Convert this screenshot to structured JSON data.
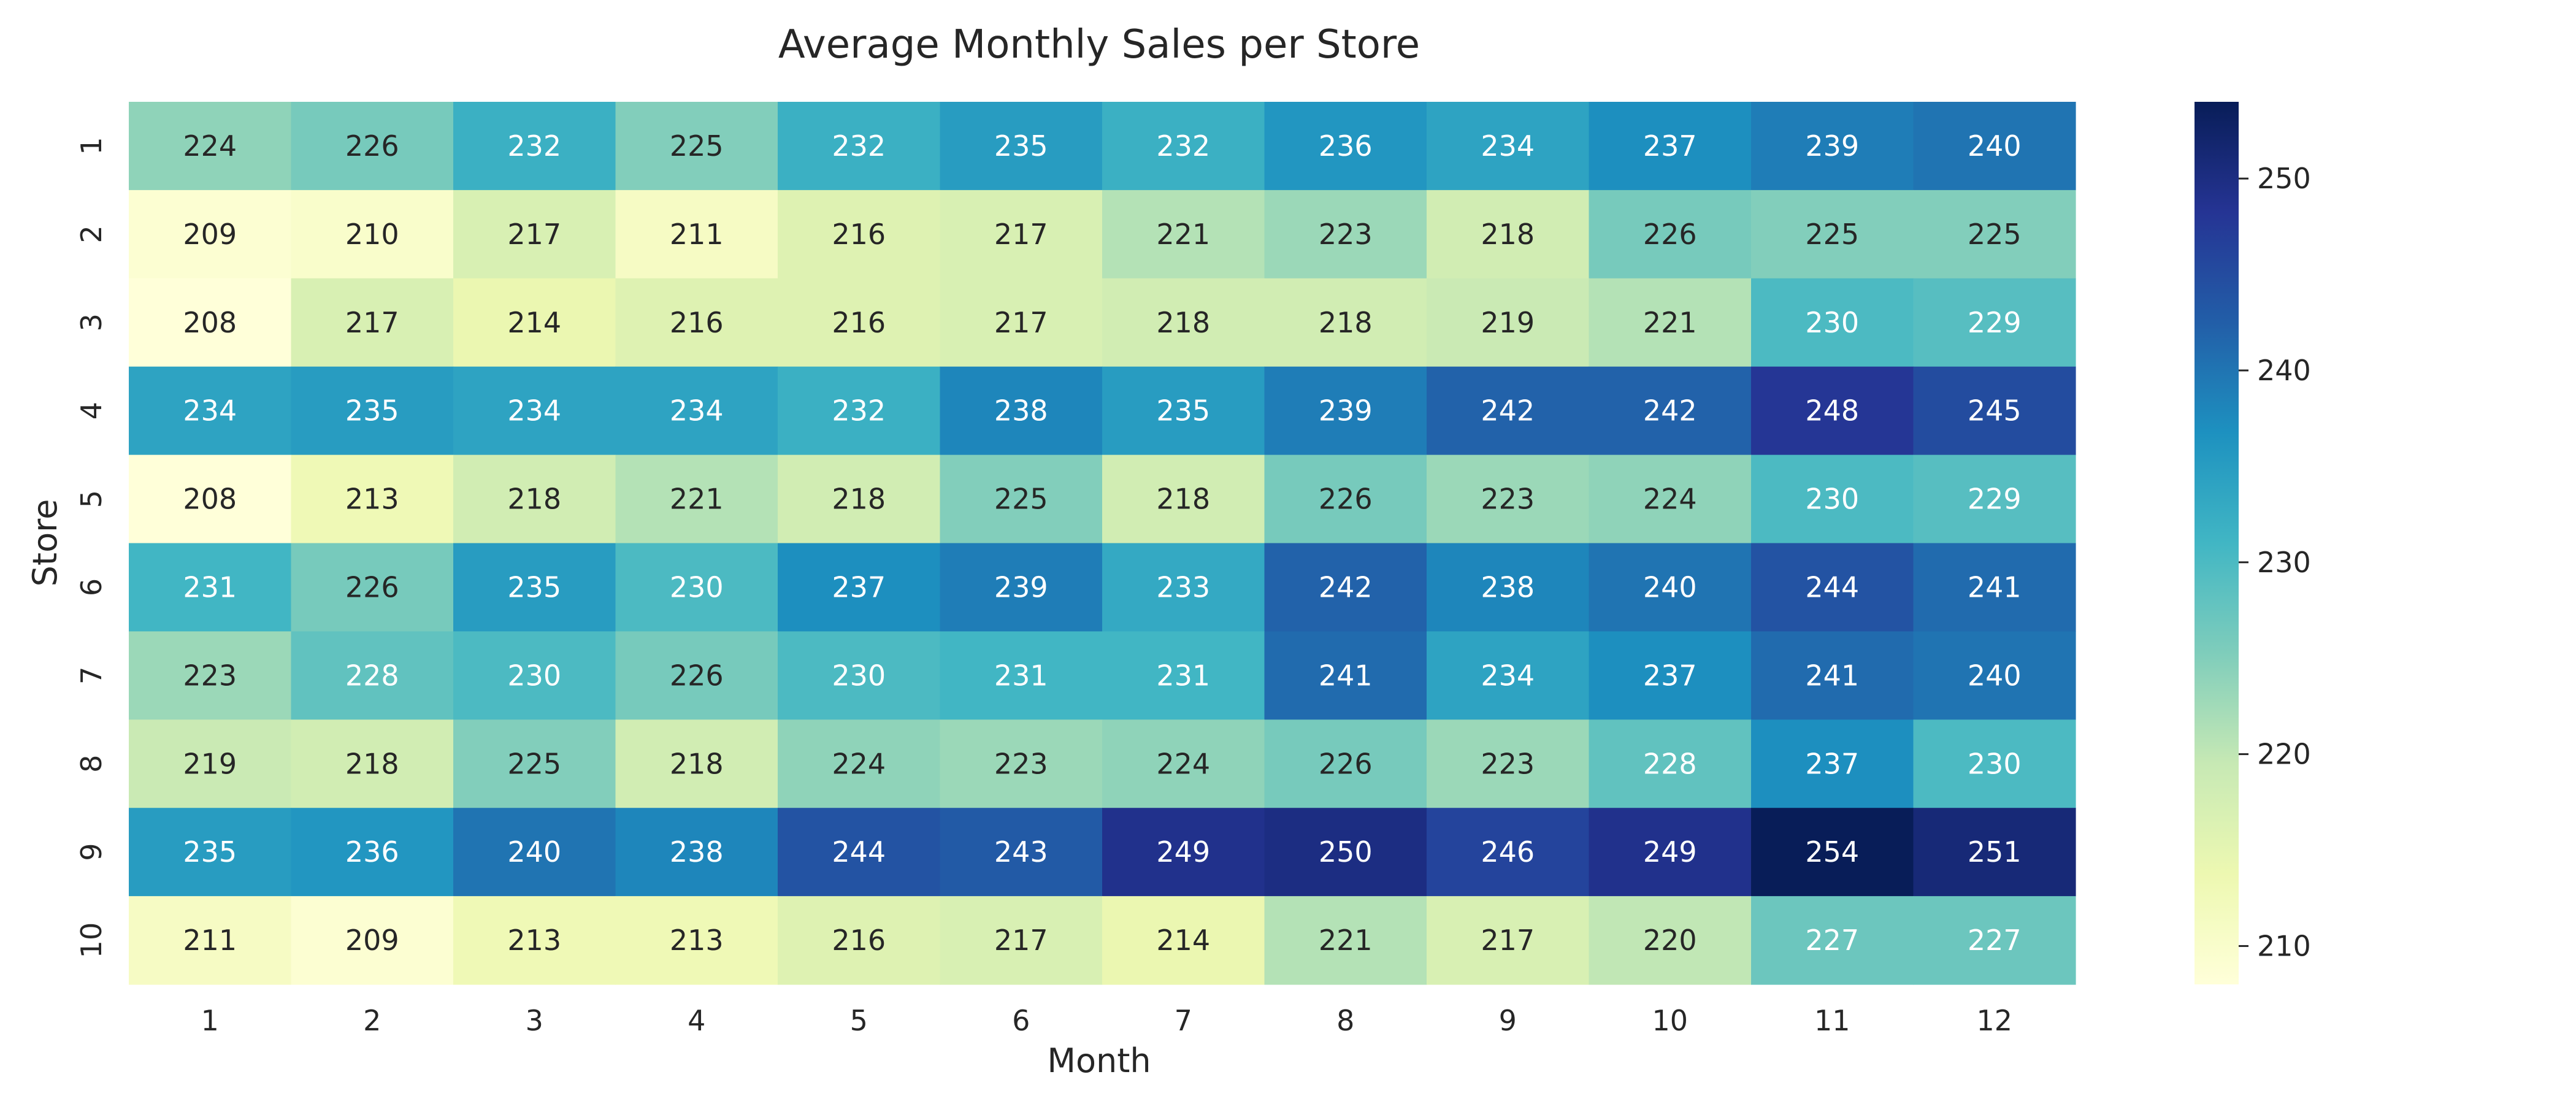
{
  "chart_data": {
    "type": "heatmap",
    "title": "Average Monthly Sales per Store",
    "xlabel": "Month",
    "ylabel": "Store",
    "x_categories": [
      "1",
      "2",
      "3",
      "4",
      "5",
      "6",
      "7",
      "8",
      "9",
      "10",
      "11",
      "12"
    ],
    "y_categories": [
      "1",
      "2",
      "3",
      "4",
      "5",
      "6",
      "7",
      "8",
      "9",
      "10"
    ],
    "values": [
      [
        224,
        226,
        232,
        225,
        232,
        235,
        232,
        236,
        234,
        237,
        239,
        240
      ],
      [
        209,
        210,
        217,
        211,
        216,
        217,
        221,
        223,
        218,
        226,
        225,
        225
      ],
      [
        208,
        217,
        214,
        216,
        216,
        217,
        218,
        218,
        219,
        221,
        230,
        229
      ],
      [
        234,
        235,
        234,
        234,
        232,
        238,
        235,
        239,
        242,
        242,
        248,
        245
      ],
      [
        208,
        213,
        218,
        221,
        218,
        225,
        218,
        226,
        223,
        224,
        230,
        229
      ],
      [
        231,
        226,
        235,
        230,
        237,
        239,
        233,
        242,
        238,
        240,
        244,
        241
      ],
      [
        223,
        228,
        230,
        226,
        230,
        231,
        231,
        241,
        234,
        237,
        241,
        240
      ],
      [
        219,
        218,
        225,
        218,
        224,
        223,
        224,
        226,
        223,
        228,
        237,
        230
      ],
      [
        235,
        236,
        240,
        238,
        244,
        243,
        249,
        250,
        246,
        249,
        254,
        251
      ],
      [
        211,
        209,
        213,
        213,
        216,
        217,
        214,
        221,
        217,
        220,
        227,
        227
      ]
    ],
    "colormap": "YlGnBu",
    "value_range": [
      208,
      254
    ],
    "colorbar_ticks": [
      210,
      220,
      230,
      240,
      250
    ],
    "colorbar_tick_labels": [
      "210",
      "220",
      "230",
      "240",
      "250"
    ]
  }
}
